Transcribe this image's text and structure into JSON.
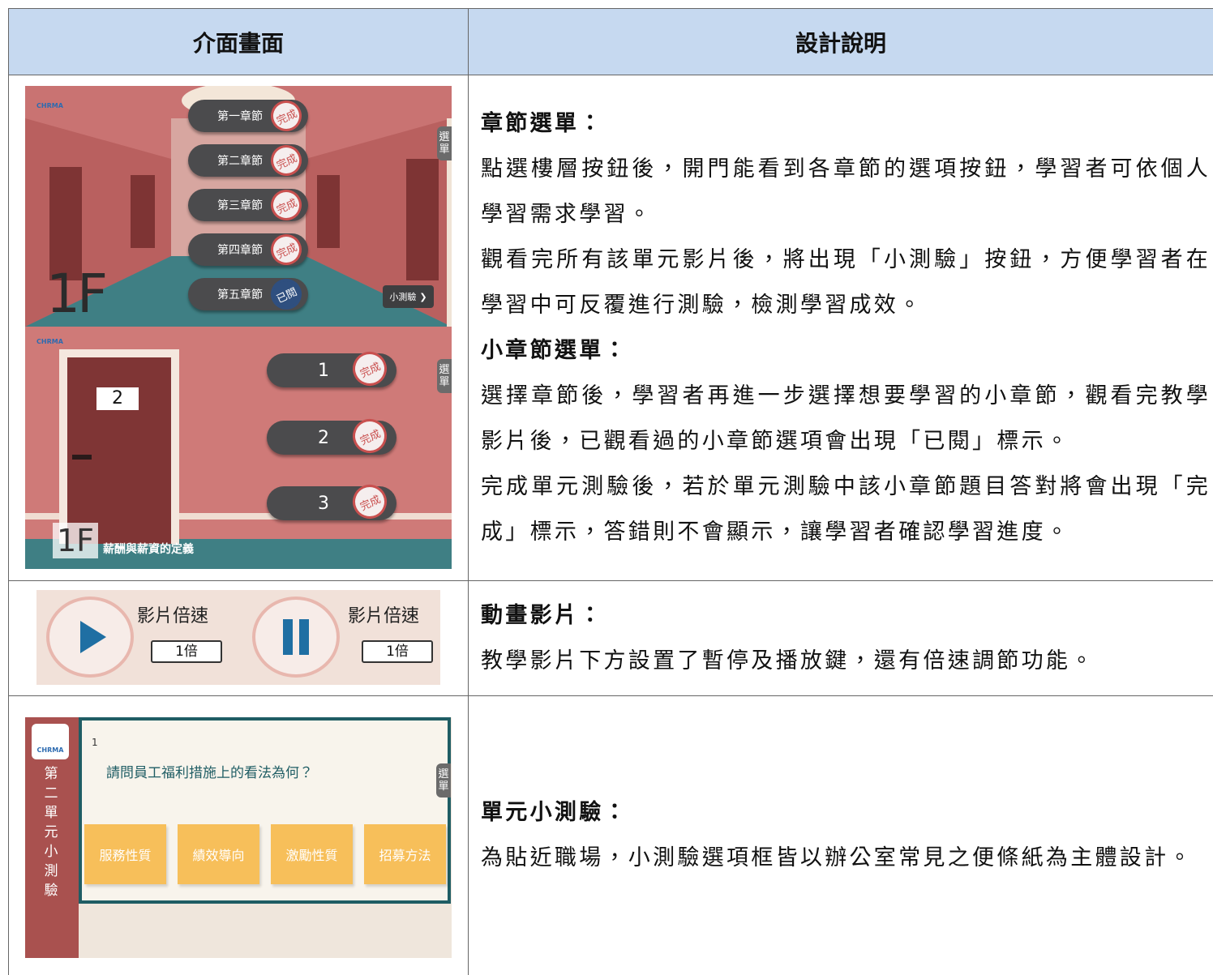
{
  "table": {
    "header": [
      "介面畫面",
      "設計說明"
    ],
    "rows": [
      {
        "screens": [
          {
            "logo": "CHRMA",
            "menu_tab": "選單",
            "floor": "1F",
            "chapters": [
              {
                "label": "第一章節",
                "status": "完成"
              },
              {
                "label": "第二章節",
                "status": "完成"
              },
              {
                "label": "第三章節",
                "status": "完成"
              },
              {
                "label": "第四章節",
                "status": "完成"
              },
              {
                "label": "第五章節",
                "status": "已閱"
              }
            ],
            "quiz_button": "小測驗"
          },
          {
            "logo": "CHRMA",
            "menu_tab": "選單",
            "door_number": "2",
            "sections": [
              {
                "label": "1",
                "status": "完成"
              },
              {
                "label": "2",
                "status": "完成"
              },
              {
                "label": "3",
                "status": "完成"
              }
            ],
            "floor": "1F",
            "chapter_title": "薪酬與薪資的定義"
          }
        ],
        "description": [
          {
            "heading": "章節選單：",
            "paragraphs": [
              "點選樓層按鈕後，開門能看到各章節的選項按鈕，學習者可依個人學習需求學習。",
              "觀看完所有該單元影片後，將出現「小測驗」按鈕，方便學習者在學習中可反覆進行測驗，檢測學習成效。"
            ]
          },
          {
            "heading": "小章節選單：",
            "paragraphs": [
              "選擇章節後，學習者再進一步選擇想要學習的小章節，觀看完教學影片後，已觀看過的小章節選項會出現「已閱」標示。",
              "完成單元測驗後，若於單元測驗中該小章節題目答對將會出現「完成」標示，答錯則不會顯示，讓學習者確認學習進度。"
            ]
          }
        ]
      },
      {
        "screens": [
          {
            "controls": [
              {
                "label": "影片倍速",
                "speed": "1倍"
              },
              {
                "label": "影片倍速",
                "speed": "1倍"
              }
            ]
          }
        ],
        "description": [
          {
            "heading": "動畫影片：",
            "paragraphs": [
              "教學影片下方設置了暫停及播放鍵，還有倍速調節功能。"
            ]
          }
        ]
      },
      {
        "screens": [
          {
            "logo": "CHRMA",
            "unit_title": "第二單元小測驗",
            "question_number": "1",
            "question": "請問員工福利措施上的看法為何？",
            "menu_tab": "選單",
            "options": [
              "服務性質",
              "績效導向",
              "激勵性質",
              "招募方法"
            ]
          }
        ],
        "description": [
          {
            "heading": "單元小測驗：",
            "paragraphs": [
              "為貼近職場，小測驗選項框皆以辦公室常見之便條紙為主體設計。"
            ]
          }
        ]
      }
    ]
  }
}
